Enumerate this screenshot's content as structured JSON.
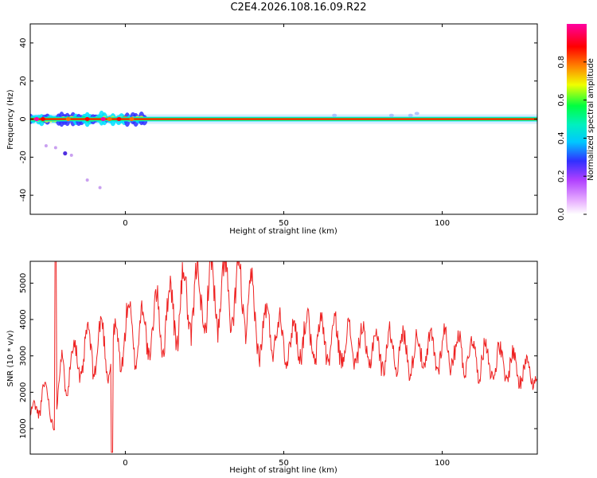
{
  "title": "C2E4.2026.108.16.09.R22",
  "chart_data": [
    {
      "type": "heatmap",
      "xlabel": "Height of straight line (km)",
      "ylabel": "Frequency (Hz)",
      "xlim": [
        -30,
        130
      ],
      "ylim": [
        -50,
        50
      ],
      "xticks": [
        0,
        50,
        100
      ],
      "yticks": [
        -40,
        -20,
        0,
        20,
        40
      ],
      "colorbar": {
        "label": "Normalized spectral amplitude",
        "ticks": [
          "0.0",
          "0.2",
          "0.4",
          "0.6",
          "0.8"
        ],
        "range": [
          0,
          1
        ],
        "colors": [
          "#ffffff",
          "#b040ff",
          "#3030ff",
          "#00e0ff",
          "#00ff40",
          "#f0ff00",
          "#ff7000",
          "#ff0000",
          "#ff00a0"
        ]
      },
      "features": [
        {
          "name": "main ridge",
          "x": [
            -30,
            130
          ],
          "frequency_hz": 0,
          "amplitude": 0.9
        },
        {
          "name": "broadened low-altitude region",
          "x": [
            -30,
            6
          ],
          "frequency_hz": [
            -3,
            3
          ]
        },
        {
          "name": "scattered low-frequency spots",
          "points": [
            [
              -25,
              -14
            ],
            [
              -22,
              -15
            ],
            [
              -19,
              -18
            ],
            [
              -17,
              -19
            ],
            [
              -12,
              -32
            ],
            [
              -8,
              -36
            ]
          ]
        },
        {
          "name": "weak spots",
          "points": [
            [
              66,
              2
            ],
            [
              84,
              2
            ],
            [
              90,
              2
            ],
            [
              92,
              3
            ]
          ]
        }
      ]
    },
    {
      "type": "line",
      "xlabel": "Height of straight line (km)",
      "ylabel": "SNR (10 * v/v)",
      "xlim": [
        -30,
        130
      ],
      "ylim": [
        300,
        5600
      ],
      "xticks": [
        0,
        50,
        100
      ],
      "yticks": [
        1000,
        2000,
        3000,
        4000,
        5000
      ],
      "color": "#ee2222",
      "envelope": {
        "x": [
          -30,
          -28,
          -26,
          -24,
          -22,
          -20,
          -18,
          -15,
          -12,
          -10,
          -8,
          -6,
          -4,
          -2,
          0,
          3,
          6,
          10,
          14,
          18,
          22,
          26,
          30,
          34,
          38,
          40,
          42,
          44,
          46,
          48,
          50,
          52,
          54,
          56,
          58,
          60,
          62,
          64,
          66,
          68,
          70,
          72,
          74,
          76,
          78,
          80,
          82,
          84,
          86,
          88,
          90,
          92,
          94,
          96,
          98,
          100,
          102,
          104,
          106,
          108,
          110,
          112,
          114,
          116,
          118,
          120,
          122,
          124,
          126,
          128,
          130
        ],
        "y": [
          1200,
          1600,
          2100,
          1500,
          1300,
          2600,
          2700,
          2900,
          3100,
          3200,
          3300,
          3200,
          3000,
          3300,
          3700,
          3600,
          3600,
          3900,
          4100,
          4400,
          4500,
          4600,
          4700,
          4650,
          4600,
          4300,
          3500,
          3700,
          3800,
          3600,
          3500,
          3300,
          3450,
          3600,
          3500,
          3300,
          3550,
          3350,
          3450,
          3350,
          3300,
          3300,
          3250,
          3250,
          3250,
          3100,
          3100,
          3200,
          3200,
          3100,
          3000,
          3100,
          3100,
          3100,
          3100,
          3200,
          3200,
          3150,
          3100,
          3050,
          3000,
          2950,
          2900,
          2800,
          2800,
          2750,
          2700,
          2650,
          2600,
          2600,
          2600
        ]
      }
    }
  ]
}
